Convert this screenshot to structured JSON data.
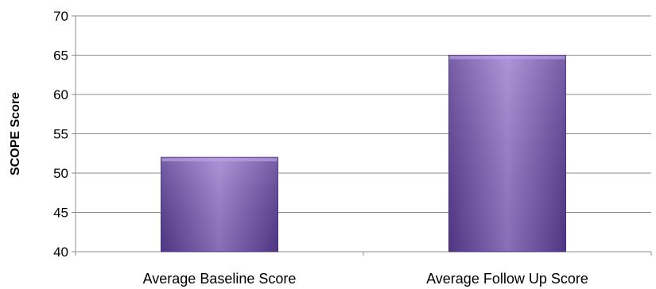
{
  "chart_data": {
    "type": "bar",
    "title": "",
    "xlabel": "",
    "ylabel": "SCOPE Score",
    "categories": [
      "Average Baseline Score",
      "Average Follow Up Score"
    ],
    "values": [
      52,
      65
    ],
    "ylim": [
      40,
      70
    ],
    "yticks": [
      40,
      45,
      50,
      55,
      60,
      65,
      70
    ],
    "grid": true,
    "legend": "none",
    "colors": {
      "bar_fill_top": "#9a7fd0",
      "bar_fill_mid": "#7a5bb6",
      "bar_fill_bottom": "#5a3d94",
      "bar_edge": "#4a2f80",
      "grid": "#8c8c8c",
      "axis": "#8c8c8c"
    }
  }
}
